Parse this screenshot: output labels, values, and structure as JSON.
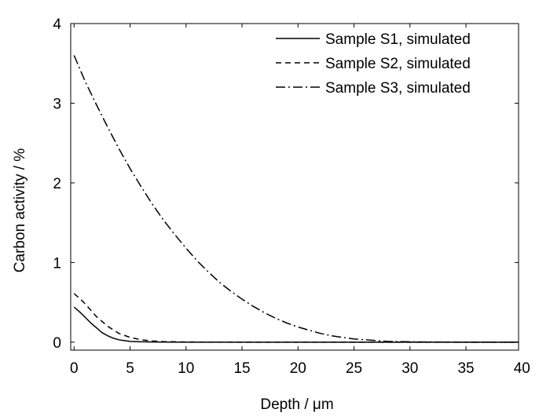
{
  "chart_data": {
    "type": "line",
    "xlabel": "Depth / μm",
    "ylabel": "Carbon activity / %",
    "xlim": [
      -0.3,
      39.7
    ],
    "ylim": [
      -0.1,
      4
    ],
    "x_ticks": [
      0,
      5,
      10,
      15,
      20,
      25,
      30,
      35,
      40
    ],
    "x_tick_labels": [
      "0",
      "5",
      "10",
      "15",
      "20",
      "25",
      "30",
      "35",
      "40"
    ],
    "y_ticks": [
      0,
      1,
      2,
      3,
      4
    ],
    "y_tick_labels": [
      "0",
      "1",
      "2",
      "3",
      "4"
    ],
    "grid": false,
    "legend_position": "top-right",
    "series": [
      {
        "name": "Sample S1, simulated",
        "line_style": "solid",
        "color": "#000000",
        "x": [
          0,
          0.5,
          1,
          1.5,
          2,
          2.5,
          3,
          3.5,
          4,
          4.5,
          5,
          6,
          7,
          8,
          10,
          15,
          20,
          25,
          30,
          35,
          39.7
        ],
        "y": [
          0.44,
          0.38,
          0.31,
          0.24,
          0.18,
          0.12,
          0.08,
          0.05,
          0.03,
          0.02,
          0.01,
          0.005,
          0.002,
          0.001,
          0,
          0,
          0,
          0,
          0,
          0,
          0
        ]
      },
      {
        "name": "Sample S2, simulated",
        "line_style": "dashed",
        "color": "#000000",
        "x": [
          0,
          0.5,
          1,
          1.5,
          2,
          3,
          4,
          5,
          6,
          7,
          8,
          10,
          15,
          20,
          25,
          30,
          35,
          39.7
        ],
        "y": [
          0.61,
          0.55,
          0.48,
          0.4,
          0.32,
          0.2,
          0.11,
          0.06,
          0.03,
          0.015,
          0.007,
          0.002,
          0,
          0,
          0,
          0,
          0,
          0
        ]
      },
      {
        "name": "Sample S3, simulated",
        "line_style": "dash-dot",
        "color": "#000000",
        "x": [
          0,
          1,
          2,
          3,
          4,
          5,
          6,
          7,
          8,
          9,
          10,
          11,
          12,
          13,
          14,
          15,
          16,
          17,
          18,
          19,
          20,
          21,
          22,
          23,
          24,
          25,
          26,
          27,
          28,
          30,
          32,
          35,
          39.7
        ],
        "y": [
          3.6,
          3.27,
          2.98,
          2.7,
          2.43,
          2.18,
          1.95,
          1.73,
          1.53,
          1.35,
          1.18,
          1.02,
          0.88,
          0.75,
          0.64,
          0.54,
          0.45,
          0.37,
          0.3,
          0.24,
          0.19,
          0.15,
          0.11,
          0.08,
          0.06,
          0.04,
          0.03,
          0.02,
          0.01,
          0.005,
          0.002,
          0,
          0
        ]
      }
    ]
  }
}
